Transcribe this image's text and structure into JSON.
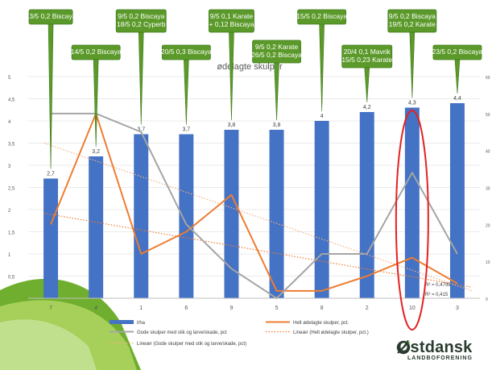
{
  "chart_data": {
    "type": "bar",
    "title": "ødelagte skulper",
    "categories": [
      "7",
      "4",
      "1",
      "6",
      "9",
      "5",
      "8",
      "2",
      "10",
      "3"
    ],
    "ylim_left": [
      0,
      5
    ],
    "yticks_left": [
      "5",
      "4,5",
      "4",
      "3,5",
      "3",
      "2,5",
      "2",
      "1,5",
      "1",
      "0,5"
    ],
    "ylim_right": [
      0,
      60
    ],
    "yticks_right": [
      "60",
      "50",
      "40",
      "30",
      "20",
      "10",
      "0"
    ],
    "series": [
      {
        "name": "t/ha",
        "kind": "bar",
        "axis": "left",
        "color": "#4472C4",
        "values": [
          2.7,
          3.2,
          3.7,
          3.7,
          3.8,
          3.8,
          4,
          4.2,
          4.3,
          4.4
        ],
        "labels": [
          "2,7",
          "3,2",
          "3,7",
          "3,7",
          "3,8",
          "3,8",
          "4",
          "4,2",
          "4,3",
          "4,4"
        ]
      },
      {
        "name": "Helt ødelagte skulper, pct.",
        "kind": "line",
        "axis": "right",
        "color": "#ED7D31",
        "values": [
          20,
          50,
          12,
          18,
          28,
          2,
          2,
          6,
          11,
          4
        ]
      },
      {
        "name": "Gode skulper med stik og larve/skade, pct",
        "kind": "line",
        "axis": "right",
        "color": "#A5A5A5",
        "values": [
          50,
          50,
          45,
          20,
          8,
          0,
          12,
          12,
          34,
          12
        ]
      },
      {
        "name": "Lineær (Helt ødelagte skulper, pct.)",
        "kind": "trend",
        "axis": "right",
        "color": "#ED7D31",
        "from": 23,
        "to": 3
      },
      {
        "name": "Lineær (Gode skulper med stik og larve/skade, pct)",
        "kind": "trend",
        "axis": "right",
        "color": "#F4B183",
        "from": 42,
        "to": 2
      }
    ],
    "r_squared": [
      "R² = 0,4799",
      "R² = 0,415"
    ],
    "highlight_category": "10",
    "annotations": [
      {
        "lines": [
          "13/5 0,2 Biscaya"
        ],
        "category": "7"
      },
      {
        "lines": [
          "14/5 0,2 Biscaya"
        ],
        "category": "4"
      },
      {
        "lines": [
          "9/5 0,2 Biscaya",
          "18/5 0,2 Cyperb"
        ],
        "category": "1"
      },
      {
        "lines": [
          "20/5 0,3 Biscaya"
        ],
        "category": "6"
      },
      {
        "lines": [
          "9/5 0,1 Karate",
          "+ 0,12 Biscaya"
        ],
        "category": "9"
      },
      {
        "lines": [
          "9/5 0,2 Karate",
          "26/5 0,2 Biscaya"
        ],
        "category": "5"
      },
      {
        "lines": [
          "15/5 0,2 Biscaya"
        ],
        "category": "8"
      },
      {
        "lines": [
          "20/4 0,1 Mavrik",
          "15/5 0,23 Karate"
        ],
        "category": "2"
      },
      {
        "lines": [
          "9/5 0,2 Biscaya",
          "19/5 0,2 Karate"
        ],
        "category": "10"
      },
      {
        "lines": [
          "23/5 0,2 Biscaya"
        ],
        "category": "3"
      }
    ],
    "legend": {
      "position": "bottom",
      "items": [
        {
          "label": "t/ha",
          "style": "bar",
          "color": "#4472C4"
        },
        {
          "label": "Helt ødelagte skulper, pct.",
          "style": "line",
          "color": "#ED7D31"
        },
        {
          "label": "Gode skulper med stik og larve/skade, pct",
          "style": "line",
          "color": "#A5A5A5"
        },
        {
          "label": "Lineær (Helt ødelagte skulper, pct.)",
          "style": "dotted",
          "color": "#ED7D31"
        },
        {
          "label": "Lineær (Gode skulper med stik og larve/skade, pct)",
          "style": "dotted",
          "color": "#F4B183"
        }
      ]
    }
  },
  "logo": {
    "name": "Østdansk",
    "subtitle": "LANDBOFORENING"
  },
  "colors": {
    "callout": "#5B9A2A",
    "callout_border": "#3F7A1A",
    "highlight_ring": "#E32222",
    "corner_green": "#8CC63F"
  }
}
